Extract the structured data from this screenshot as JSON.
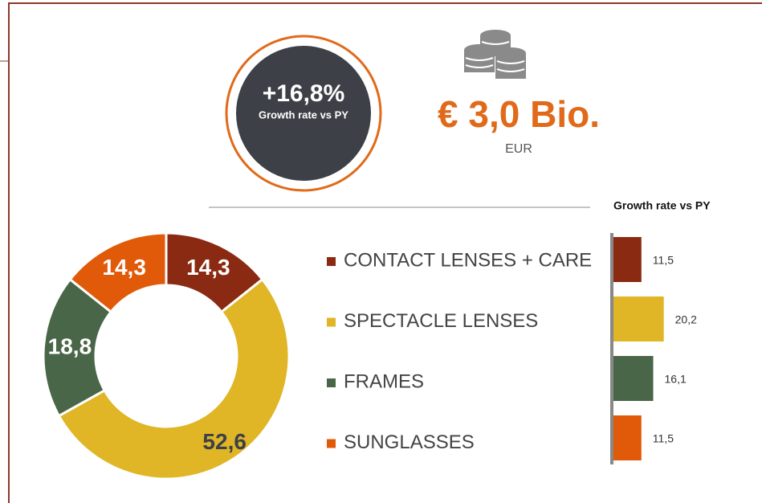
{
  "kpi": {
    "growth": "+16,8%",
    "growth_caption": "Growth rate vs PY",
    "amount": "€ 3,0 Bio.",
    "unit": "EUR"
  },
  "chart_data": [
    {
      "type": "pie",
      "donut": true,
      "categories": [
        "CONTACT LENSES + CARE",
        "SPECTACLE LENSES",
        "FRAMES",
        "SUNGLASSES"
      ],
      "values": [
        14.3,
        52.6,
        18.8,
        14.3
      ],
      "value_labels": [
        "14,3",
        "52,6",
        "18,8",
        "14,3"
      ],
      "colors": [
        "#8b2a12",
        "#e0b526",
        "#4a6648",
        "#e05a0a"
      ],
      "label_colors": [
        "#ffffff",
        "#3d4147",
        "#ffffff",
        "#ffffff"
      ]
    },
    {
      "type": "hbar",
      "title": "Growth rate vs PY",
      "values": [
        11.5,
        20.2,
        16.1,
        11.5
      ],
      "value_labels": [
        "11,5",
        "20,2",
        "16,1",
        "11,5"
      ],
      "colors": [
        "#8b2a12",
        "#e0b526",
        "#4a6648",
        "#e05a0a"
      ],
      "xlim": [
        0,
        25
      ]
    }
  ]
}
